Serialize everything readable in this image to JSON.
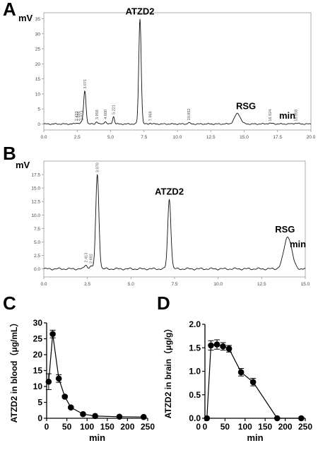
{
  "chart_data": [
    {
      "panel": "A",
      "type": "line",
      "ylabel": "mV",
      "xlabel": "min",
      "xlim": [
        0.0,
        20.0
      ],
      "ylim": [
        -2,
        37
      ],
      "xticks": [
        "0.0",
        "2.5",
        "5.0",
        "7.5",
        "10.0",
        "12.5",
        "15.0",
        "17.5",
        "20.0"
      ],
      "yticks": [
        "0",
        "5",
        "10",
        "15",
        "20",
        "25",
        "30",
        "35"
      ],
      "peak_labels": [
        {
          "text": "ATZD2",
          "x": 7.2,
          "height": 35
        },
        {
          "text": "RSG",
          "x": 14.5,
          "height": 3.5
        }
      ],
      "retention_times": [
        "2.433",
        "2.596",
        "2.823",
        "3.071",
        "3.956",
        "4.600",
        "5.221",
        "7.968",
        "10.852",
        "16.924",
        "18.858"
      ],
      "peaks": [
        {
          "t": 2.43,
          "h": 0.3
        },
        {
          "t": 2.6,
          "h": 0.3
        },
        {
          "t": 2.82,
          "h": 0.5
        },
        {
          "t": 3.07,
          "h": 11.0
        },
        {
          "t": 3.96,
          "h": 0.8
        },
        {
          "t": 4.6,
          "h": 0.9
        },
        {
          "t": 5.22,
          "h": 2.5
        },
        {
          "t": 7.2,
          "h": 35.0
        },
        {
          "t": 7.97,
          "h": 0.3
        },
        {
          "t": 10.85,
          "h": 0.5
        },
        {
          "t": 14.5,
          "h": 3.5
        },
        {
          "t": 16.92,
          "h": 0.2
        },
        {
          "t": 18.86,
          "h": 0.2
        }
      ]
    },
    {
      "panel": "B",
      "type": "line",
      "ylabel": "mV",
      "xlabel": "min",
      "xlim": [
        0.0,
        15.0
      ],
      "ylim": [
        -1.5,
        20
      ],
      "xticks": [
        "0.0",
        "2.5",
        "5.0",
        "7.5",
        "10.0",
        "12.5",
        "15.0"
      ],
      "yticks": [
        "0.0",
        "2.5",
        "5.0",
        "7.5",
        "10.0",
        "12.5",
        "15.0",
        "17.5"
      ],
      "peak_labels": [
        {
          "text": "ATZD2",
          "x": 7.2,
          "height": 13.0
        },
        {
          "text": "RSG",
          "x": 14.0,
          "height": 6.0
        }
      ],
      "retention_times": [
        "2.413",
        "2.692",
        "3.070"
      ],
      "peaks": [
        {
          "t": 2.41,
          "h": 0.8
        },
        {
          "t": 2.69,
          "h": 0.6
        },
        {
          "t": 3.07,
          "h": 17.5
        },
        {
          "t": 7.2,
          "h": 13.0
        },
        {
          "t": 14.0,
          "h": 6.0
        }
      ]
    },
    {
      "panel": "C",
      "type": "line",
      "ylabel": "ATZD2 in blood（μg/mL）",
      "xlabel": "min",
      "xlim": [
        0,
        250
      ],
      "ylim": [
        0,
        30
      ],
      "xticks": [
        "0",
        "50",
        "100",
        "150",
        "200",
        "250"
      ],
      "yticks": [
        "0",
        "5",
        "10",
        "15",
        "20",
        "25",
        "30"
      ],
      "x": [
        5,
        15,
        30,
        45,
        60,
        90,
        120,
        180,
        240
      ],
      "values": [
        11.5,
        26.5,
        12.5,
        6.8,
        3.4,
        1.3,
        0.7,
        0.5,
        0.4
      ],
      "errors": [
        2.5,
        1.2,
        1.2,
        0.4,
        0.3,
        0.2,
        0.1,
        0.1,
        0.1
      ]
    },
    {
      "panel": "D",
      "type": "line",
      "ylabel": "ATZD2 in brain（μg/g）",
      "xlabel": "min",
      "xlim": [
        0,
        250
      ],
      "ylim": [
        0,
        2.0
      ],
      "xticks": [
        "0",
        "50",
        "100",
        "150",
        "200",
        "250"
      ],
      "yticks": [
        "0.0",
        "0.5",
        "1.0",
        "1.5",
        "2.0"
      ],
      "ytick_zero_extra": "0",
      "x": [
        5,
        15,
        30,
        45,
        60,
        90,
        120,
        180,
        240
      ],
      "values": [
        0.0,
        1.55,
        1.57,
        1.53,
        1.48,
        0.98,
        0.77,
        0.0,
        0.0
      ],
      "errors": [
        0.0,
        0.1,
        0.1,
        0.08,
        0.07,
        0.08,
        0.08,
        0.0,
        0.0
      ]
    }
  ]
}
